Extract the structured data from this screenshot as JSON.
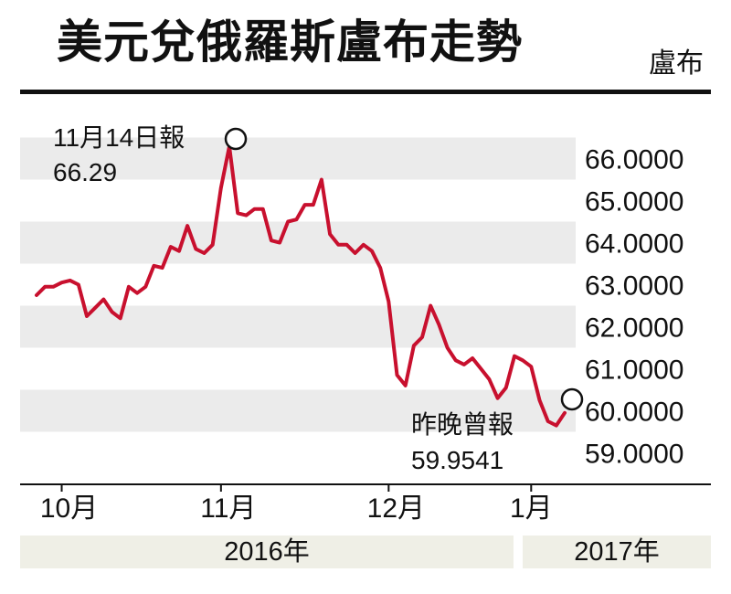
{
  "title": "美元兌俄羅斯盧布走勢",
  "unit_label": "盧布",
  "chart_data": {
    "type": "line",
    "title": "美元兌俄羅斯盧布走勢",
    "ylabel": "盧布",
    "ylim": [
      59.0,
      66.3
    ],
    "y_ticks": [
      "66.0000",
      "65.0000",
      "64.0000",
      "63.0000",
      "62.0000",
      "61.0000",
      "60.0000",
      "59.0000"
    ],
    "y_tick_values": [
      66,
      65,
      64,
      63,
      62,
      61,
      60,
      59
    ],
    "month_labels": [
      "10月",
      "11月",
      "12月",
      "1月"
    ],
    "month_positions": [
      3,
      22,
      42,
      59
    ],
    "year_labels": [
      "2016年",
      "2017年"
    ],
    "grid_bands": true,
    "series": [
      {
        "color": "#c8102e",
        "values": [
          62.75,
          62.95,
          62.95,
          63.05,
          63.1,
          63.0,
          62.25,
          62.45,
          62.65,
          62.35,
          62.2,
          62.95,
          62.8,
          62.95,
          63.45,
          63.4,
          63.9,
          63.8,
          64.4,
          63.85,
          63.75,
          63.95,
          65.3,
          66.29,
          64.7,
          64.65,
          64.8,
          64.8,
          64.05,
          64.0,
          64.5,
          64.55,
          64.9,
          64.9,
          65.5,
          64.2,
          63.95,
          63.95,
          63.75,
          63.95,
          63.8,
          63.4,
          62.6,
          60.85,
          60.6,
          61.55,
          61.75,
          62.5,
          62.05,
          61.5,
          61.2,
          61.1,
          61.25,
          61.0,
          60.75,
          60.3,
          60.55,
          61.3,
          61.2,
          61.05,
          60.25,
          59.75,
          59.65,
          59.95
        ]
      }
    ],
    "annotations": [
      {
        "line1": "11月14日報",
        "line2": "66.29",
        "index": 23,
        "value": 66.29
      },
      {
        "line1": "昨晚曾報",
        "line2": "59.9541",
        "index": 63,
        "value": 59.9541
      }
    ]
  }
}
